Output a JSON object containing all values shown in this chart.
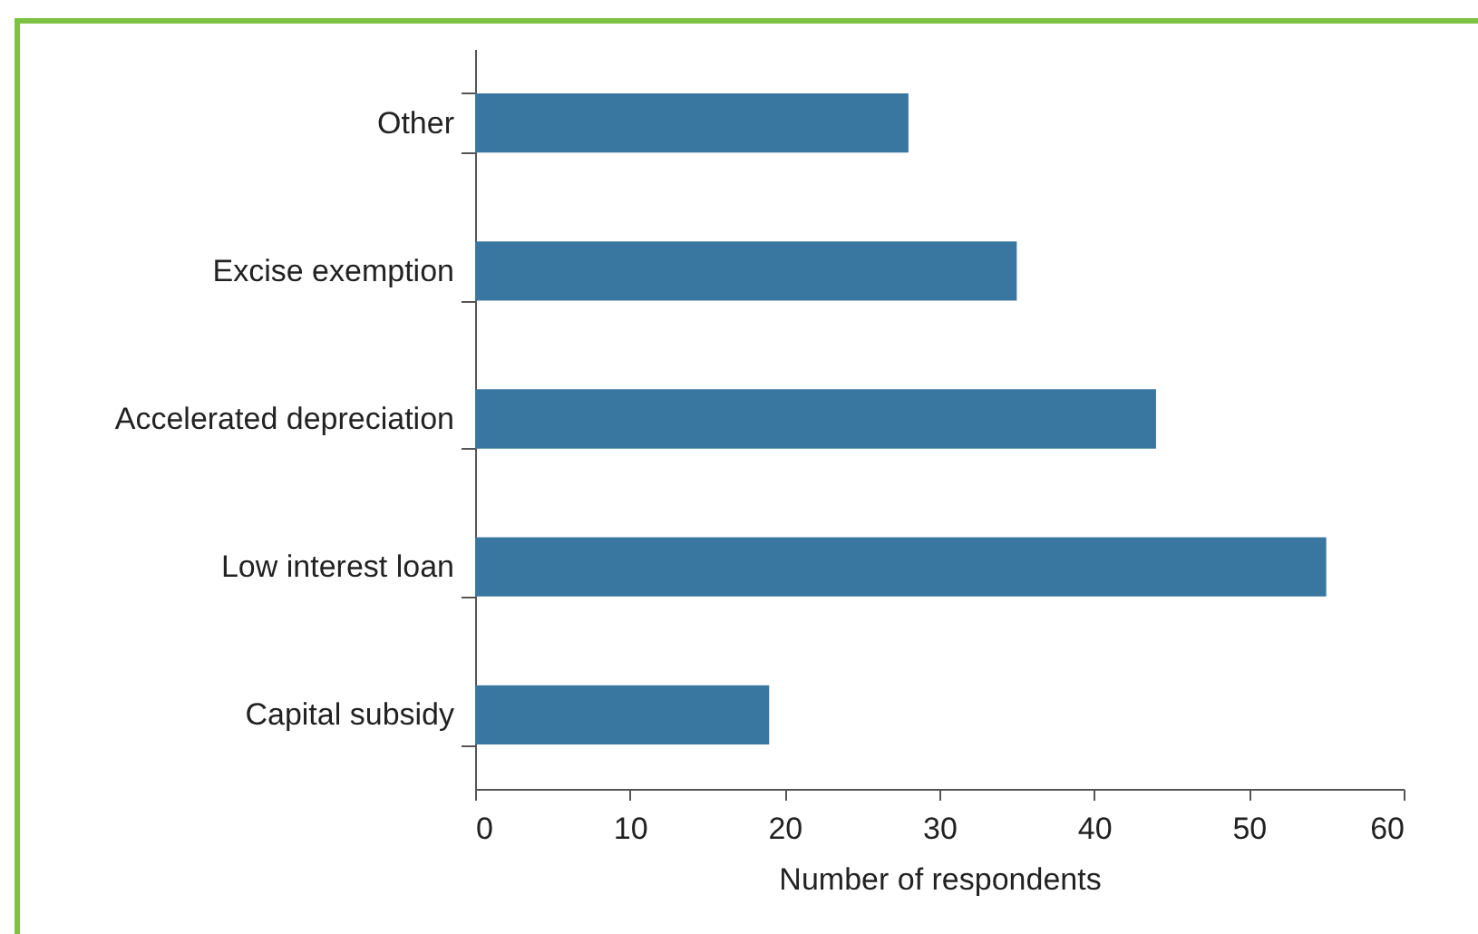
{
  "chart_data": {
    "type": "bar",
    "orientation": "horizontal",
    "categories": [
      "Other",
      "Excise exemption",
      "Accelerated depreciation",
      "Low interest loan",
      "Capital subsidy"
    ],
    "values": [
      28,
      35,
      44,
      55,
      19
    ],
    "color": "#3a77a0",
    "xlabel": "Number of respondents",
    "xlim": [
      0,
      60
    ],
    "xticks": [
      0,
      10,
      20,
      30,
      40,
      50,
      60
    ],
    "grid": false
  }
}
